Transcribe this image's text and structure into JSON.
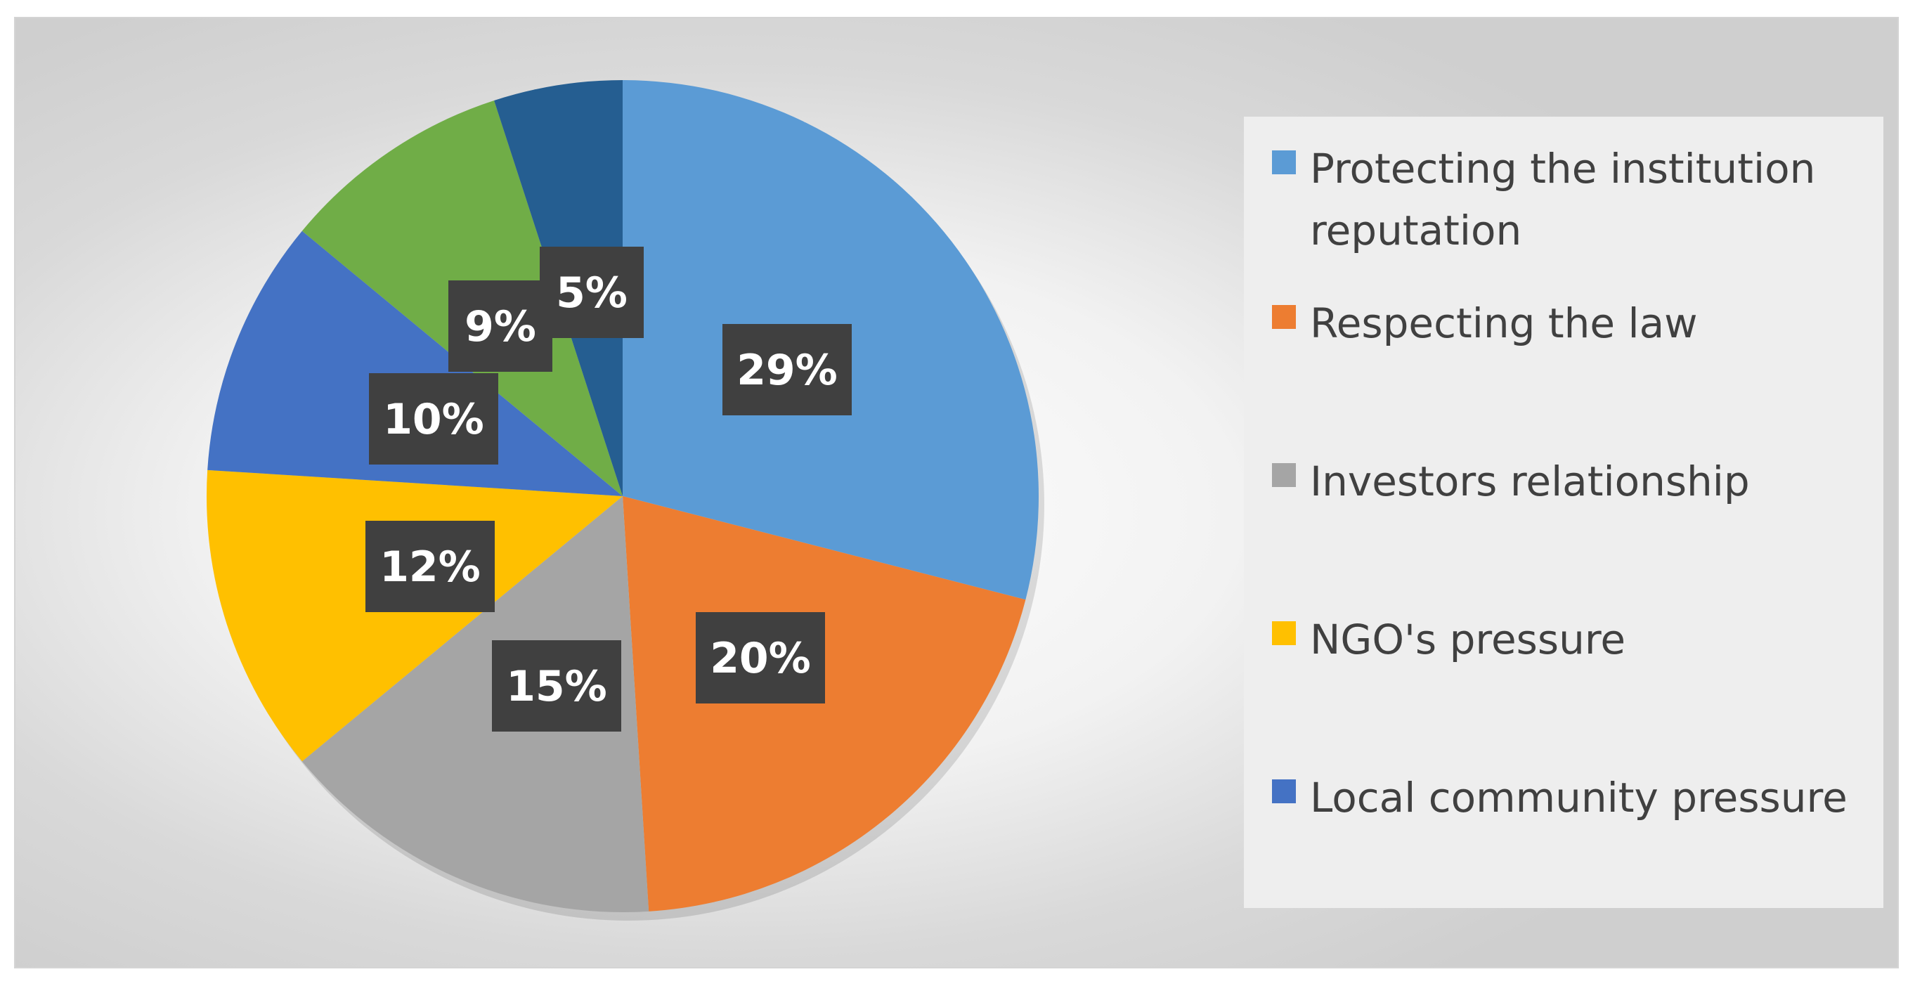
{
  "chart_data": {
    "type": "pie",
    "title": "",
    "legend_position": "right",
    "slices": [
      {
        "label": "Protecting the institution reputation",
        "value": 29,
        "display": "29%",
        "color": "#5b9bd5"
      },
      {
        "label": "Respecting the law",
        "value": 20,
        "display": "20%",
        "color": "#ed7d31"
      },
      {
        "label": "Investors relationship",
        "value": 15,
        "display": "15%",
        "color": "#a5a5a5"
      },
      {
        "label": "NGO's pressure",
        "value": 12,
        "display": "12%",
        "color": "#ffc000"
      },
      {
        "label": "Local community pressure",
        "value": 10,
        "display": "10%",
        "color": "#4472c4"
      },
      {
        "label": "",
        "value": 9,
        "display": "9%",
        "color": "#70ad47"
      },
      {
        "label": "",
        "value": 5,
        "display": "5%",
        "color": "#255e91"
      }
    ]
  }
}
